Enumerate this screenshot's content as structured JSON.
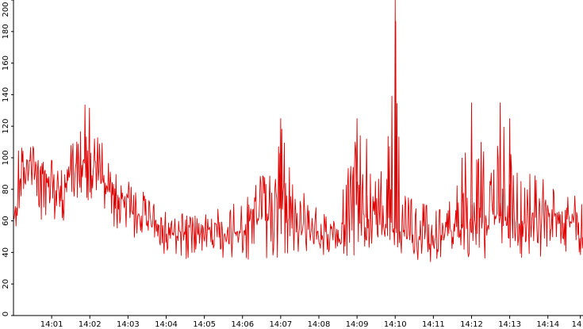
{
  "chart_data": {
    "type": "line",
    "title": "",
    "xlabel": "",
    "ylabel": "",
    "ylim": [
      0,
      200
    ],
    "yticks": [
      0,
      20,
      40,
      60,
      80,
      100,
      120,
      140,
      160,
      180,
      200
    ],
    "xlim_minutes": [
      0.0,
      14.92
    ],
    "xticks": [
      {
        "label": "14:01",
        "minute": 1
      },
      {
        "label": "14:02",
        "minute": 2
      },
      {
        "label": "14:03",
        "minute": 3
      },
      {
        "label": "14:04",
        "minute": 4
      },
      {
        "label": "14:05",
        "minute": 5
      },
      {
        "label": "14:06",
        "minute": 6
      },
      {
        "label": "14:07",
        "minute": 7
      },
      {
        "label": "14:08",
        "minute": 8
      },
      {
        "label": "14:09",
        "minute": 9
      },
      {
        "label": "14:10",
        "minute": 10
      },
      {
        "label": "14:11",
        "minute": 11
      },
      {
        "label": "14:12",
        "minute": 12
      },
      {
        "label": "14:13",
        "minute": 13
      },
      {
        "label": "14:14",
        "minute": 14
      },
      {
        "label": "14",
        "minute": 14.85
      }
    ],
    "grid": false,
    "legend": "none",
    "series": [
      {
        "color": "#e00000",
        "x": [
          0.0,
          0.25,
          0.5,
          0.75,
          1.0,
          1.25,
          1.5,
          1.75,
          2.0,
          2.25,
          2.5,
          2.75,
          3.0,
          3.25,
          3.5,
          3.75,
          4.0,
          4.25,
          4.5,
          4.75,
          5.0,
          5.25,
          5.5,
          5.75,
          6.0,
          6.25,
          6.5,
          6.75,
          7.0,
          7.25,
          7.5,
          7.75,
          8.0,
          8.25,
          8.5,
          8.75,
          9.0,
          9.25,
          9.5,
          9.75,
          10.0,
          10.25,
          10.5,
          10.75,
          11.0,
          11.25,
          11.5,
          11.75,
          12.0,
          12.25,
          12.5,
          12.75,
          13.0,
          13.25,
          13.5,
          13.75,
          14.0,
          14.25,
          14.5,
          14.75,
          14.92
        ],
        "y": [
          60,
          100,
          95,
          90,
          85,
          80,
          88,
          95,
          105,
          90,
          80,
          75,
          70,
          65,
          60,
          58,
          55,
          55,
          52,
          52,
          52,
          53,
          52,
          52,
          55,
          58,
          62,
          66,
          68,
          62,
          56,
          52,
          52,
          52,
          54,
          60,
          70,
          62,
          58,
          56,
          55,
          52,
          50,
          50,
          50,
          52,
          54,
          56,
          60,
          62,
          65,
          63,
          62,
          60,
          60,
          64,
          66,
          64,
          60,
          55,
          50
        ],
        "upper": [
          100,
          112,
          108,
          100,
          100,
          95,
          108,
          125,
          145,
          115,
          100,
          88,
          85,
          82,
          76,
          72,
          68,
          68,
          66,
          66,
          66,
          68,
          70,
          72,
          72,
          78,
          90,
          100,
          125,
          95,
          88,
          70,
          68,
          68,
          78,
          92,
          125,
          112,
          95,
          88,
          200,
          92,
          78,
          72,
          70,
          72,
          80,
          100,
          135,
          110,
          100,
          135,
          125,
          100,
          90,
          95,
          90,
          85,
          80,
          75,
          70
        ],
        "lower": [
          50,
          75,
          65,
          60,
          60,
          58,
          65,
          70,
          72,
          65,
          58,
          55,
          52,
          48,
          44,
          40,
          36,
          36,
          36,
          36,
          34,
          35,
          35,
          35,
          35,
          35,
          35,
          35,
          35,
          36,
          38,
          38,
          38,
          38,
          38,
          38,
          38,
          40,
          40,
          40,
          38,
          36,
          32,
          32,
          34,
          36,
          36,
          36,
          36,
          36,
          36,
          36,
          36,
          36,
          36,
          36,
          36,
          36,
          36,
          36,
          36
        ]
      }
    ]
  }
}
